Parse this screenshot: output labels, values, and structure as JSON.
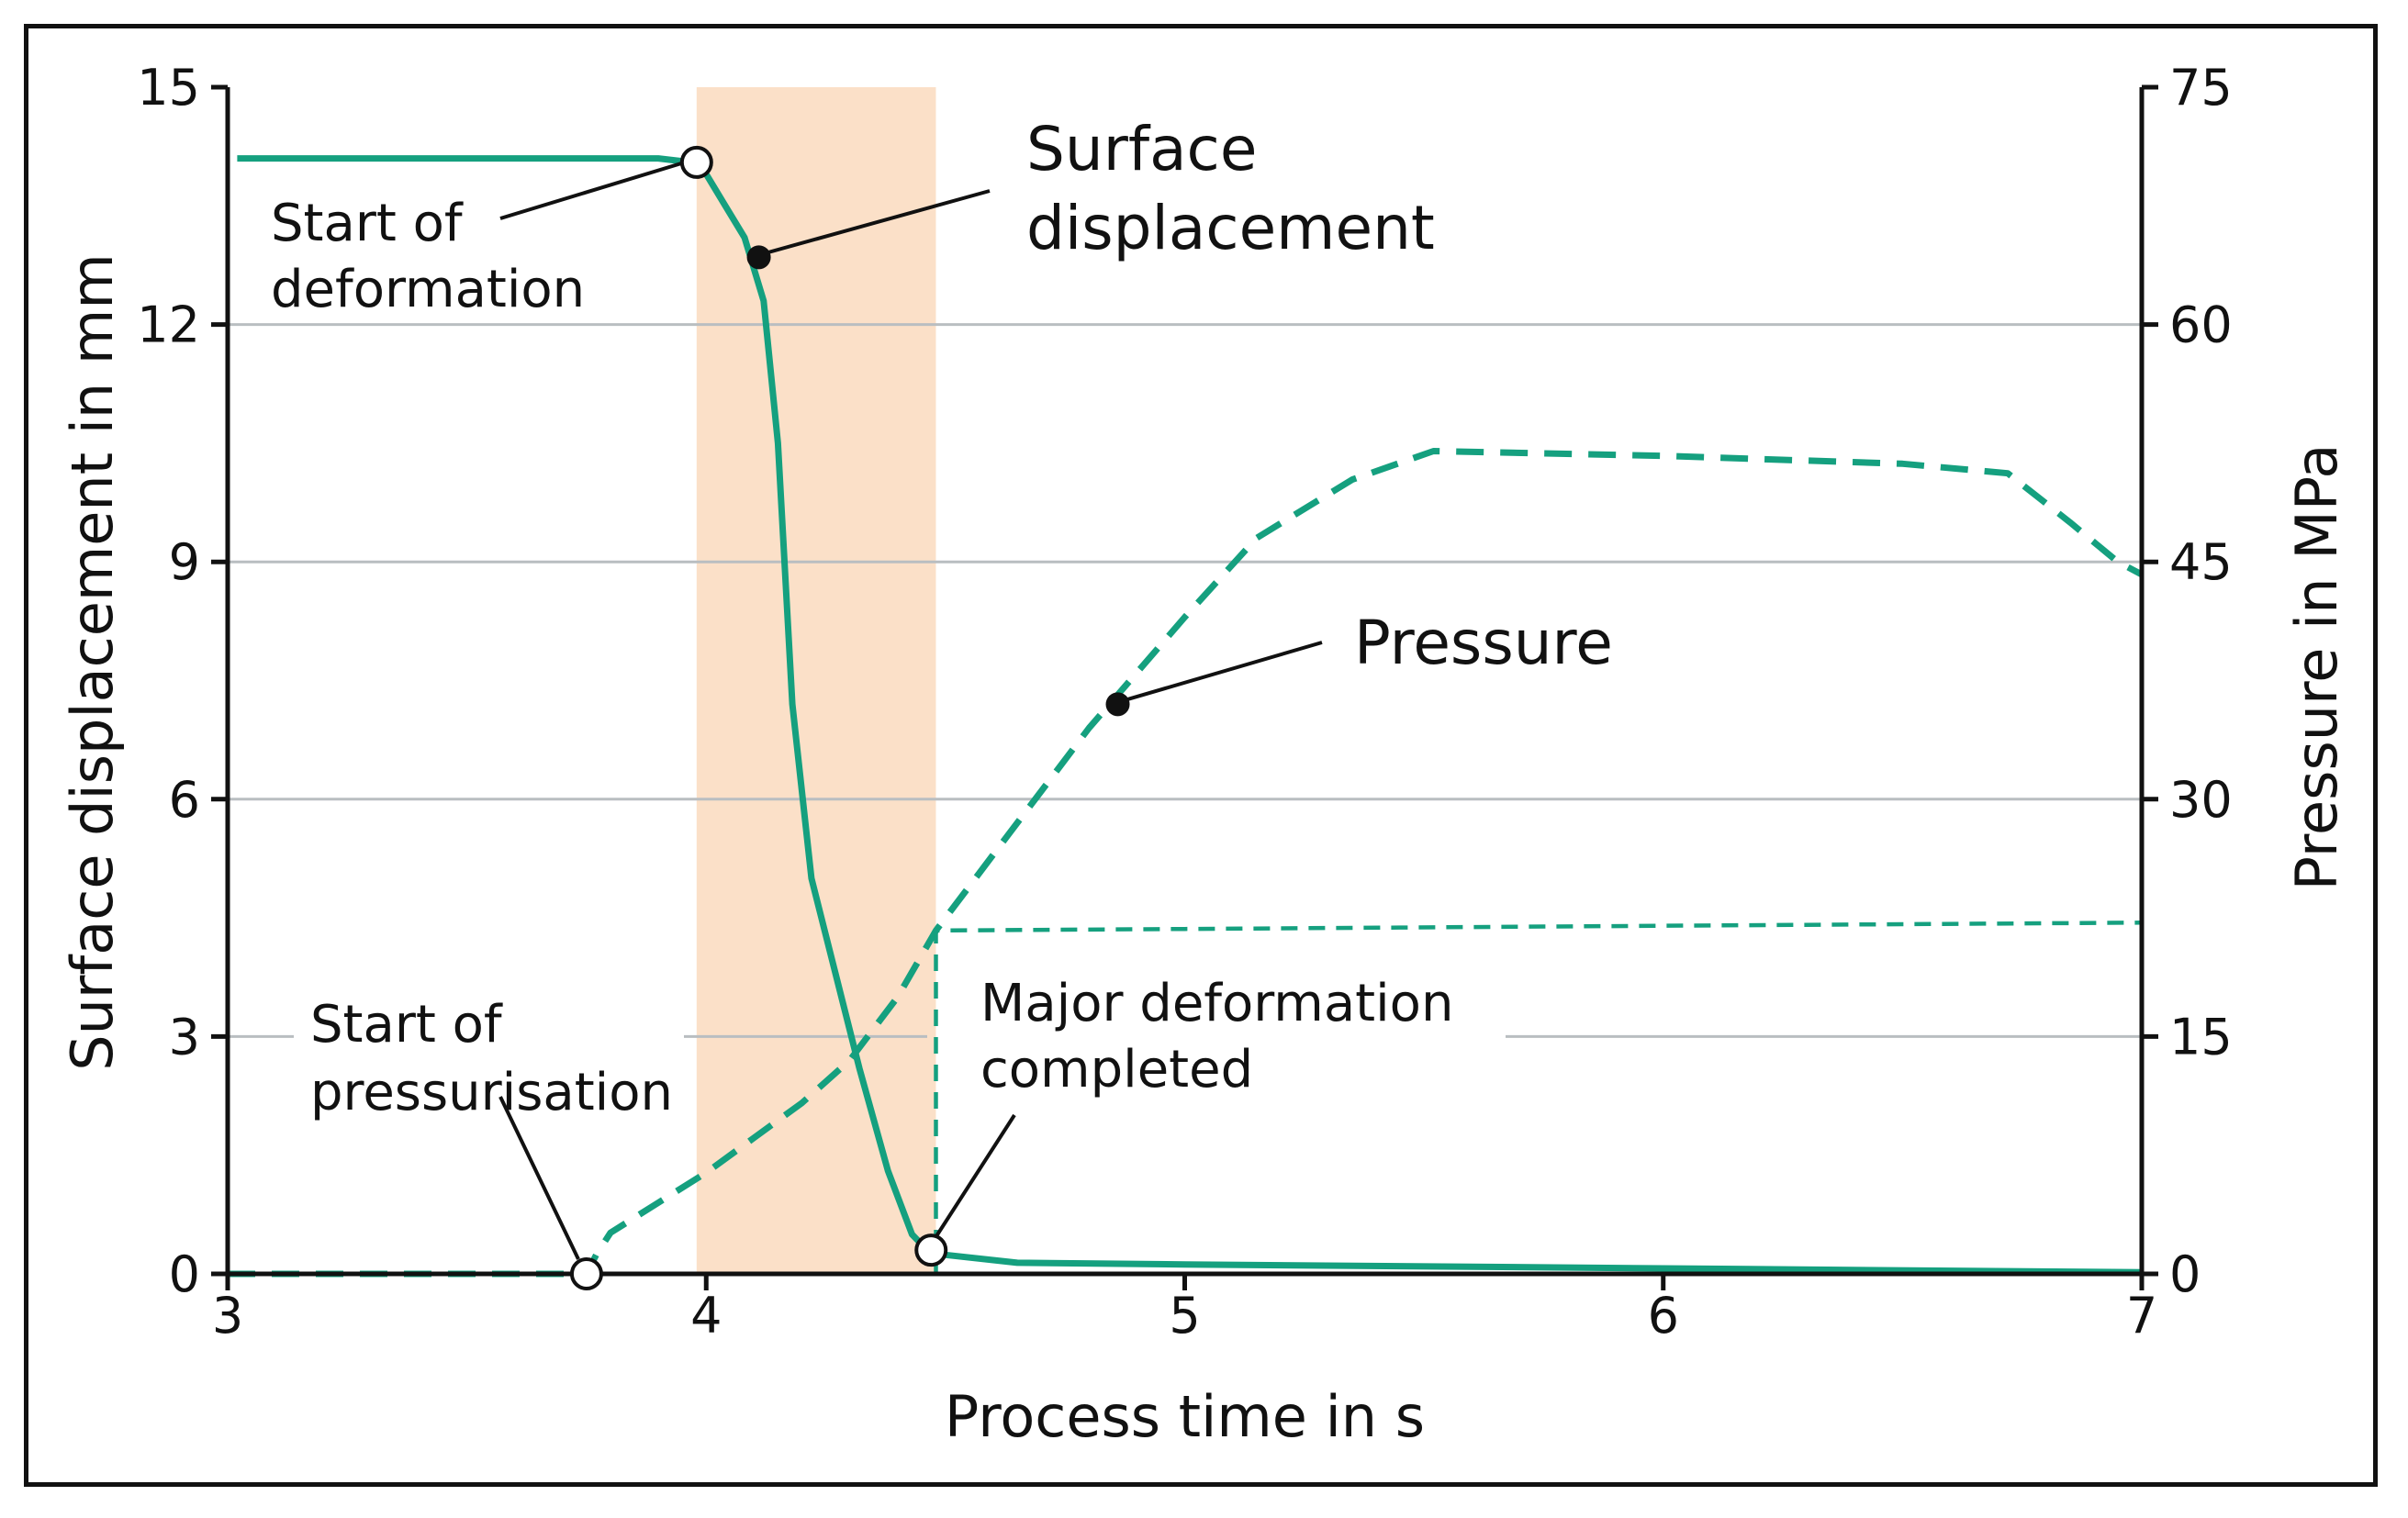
{
  "chart_data": {
    "type": "line",
    "xlabel": "Process time in s",
    "ylabel_left": "Surface displacement in mm",
    "ylabel_right": "Pressure in MPa",
    "xlim": [
      3,
      7
    ],
    "ylim_left": [
      0,
      15
    ],
    "ylim_right": [
      0,
      75
    ],
    "x_ticks": [
      "3",
      "4",
      "5",
      "6",
      "7"
    ],
    "y_ticks_left": [
      "0",
      "3",
      "6",
      "9",
      "12",
      "15"
    ],
    "y_ticks_right": [
      "0",
      "15",
      "30",
      "45",
      "60",
      "75"
    ],
    "grid": "horizontal",
    "highlight_region": {
      "x_start": 3.98,
      "x_end": 4.48,
      "color": "#fbe0c8"
    },
    "series": [
      {
        "name": "Surface displacement",
        "axis": "left",
        "style": "solid",
        "color": "#15a07f",
        "points": [
          [
            3.02,
            14.1
          ],
          [
            3.9,
            14.1
          ],
          [
            3.97,
            14.05
          ],
          [
            4.0,
            13.9
          ],
          [
            4.04,
            13.5
          ],
          [
            4.08,
            13.1
          ],
          [
            4.12,
            12.3
          ],
          [
            4.15,
            10.5
          ],
          [
            4.18,
            7.2
          ],
          [
            4.22,
            5.0
          ],
          [
            4.27,
            3.8
          ],
          [
            4.32,
            2.6
          ],
          [
            4.38,
            1.3
          ],
          [
            4.43,
            0.5
          ],
          [
            4.47,
            0.25
          ],
          [
            4.5,
            0.24
          ],
          [
            4.65,
            0.14
          ],
          [
            5.0,
            0.12
          ],
          [
            6.0,
            0.07
          ],
          [
            7.0,
            0.02
          ]
        ]
      },
      {
        "name": "Pressure",
        "axis": "right",
        "style": "dashed",
        "color": "#15a07f",
        "points": [
          [
            3.0,
            0
          ],
          [
            3.75,
            0
          ],
          [
            3.77,
            1.2
          ],
          [
            3.8,
            2.6
          ],
          [
            3.9,
            4.5
          ],
          [
            4.0,
            6.4
          ],
          [
            4.1,
            8.6
          ],
          [
            4.2,
            10.8
          ],
          [
            4.3,
            13.5
          ],
          [
            4.4,
            17.5
          ],
          [
            4.48,
            21.7
          ],
          [
            4.6,
            26.5
          ],
          [
            4.8,
            34.5
          ],
          [
            5.0,
            41.5
          ],
          [
            5.15,
            46.5
          ],
          [
            5.35,
            50.2
          ],
          [
            5.52,
            52.0
          ],
          [
            6.0,
            51.7
          ],
          [
            6.5,
            51.2
          ],
          [
            6.72,
            50.6
          ],
          [
            6.85,
            47.5
          ],
          [
            6.95,
            45.0
          ],
          [
            7.0,
            44.2
          ]
        ]
      },
      {
        "name": "",
        "axis": "right",
        "style": "dashed-thin",
        "color": "#15a07f",
        "points": [
          [
            4.48,
            0
          ],
          [
            4.48,
            21.7
          ],
          [
            5.0,
            21.8
          ],
          [
            6.0,
            22.0
          ],
          [
            7.0,
            22.2
          ]
        ]
      }
    ],
    "markers": [
      {
        "x": 3.98,
        "y": 14.05,
        "axis": "left",
        "kind": "open"
      },
      {
        "x": 4.11,
        "y": 12.85,
        "axis": "left",
        "kind": "filled"
      },
      {
        "x": 3.75,
        "y": 0,
        "axis": "left",
        "kind": "open"
      },
      {
        "x": 4.47,
        "y": 0.3,
        "axis": "left",
        "kind": "open"
      },
      {
        "x": 4.86,
        "y": 36.0,
        "axis": "right",
        "kind": "filled"
      }
    ],
    "annotations": [
      {
        "id": "start_deformation",
        "lines": [
          "Start of",
          "deformation"
        ]
      },
      {
        "id": "surface_displacement",
        "lines": [
          "Surface",
          "displacement"
        ]
      },
      {
        "id": "pressure",
        "lines": [
          "Pressure"
        ]
      },
      {
        "id": "start_pressurisation",
        "lines": [
          "Start of",
          "pressurisation"
        ]
      },
      {
        "id": "major_deformation",
        "lines": [
          "Major deformation",
          "completed"
        ]
      }
    ]
  }
}
